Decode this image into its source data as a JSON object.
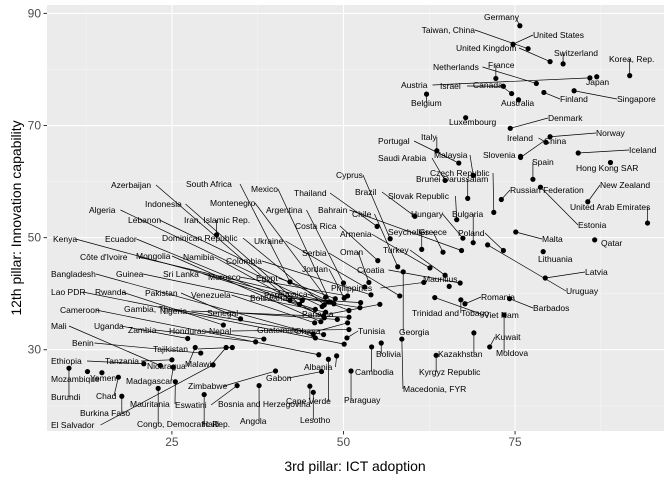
{
  "chart_data": {
    "type": "scatter",
    "xlabel": "3rd pillar: ICT adoption",
    "ylabel": "12th pillar: Innovation capability",
    "xlim": [
      6.8,
      96.7
    ],
    "ylim": [
      15.5,
      91.5
    ],
    "x_ticks": [
      25,
      50,
      75
    ],
    "y_ticks": [
      30,
      50,
      70,
      90
    ],
    "grid": true,
    "points": [
      {
        "label": "Germany",
        "x": 75.7,
        "y": 87.8
      },
      {
        "label": "United States",
        "x": 74.7,
        "y": 84.5
      },
      {
        "label": "Taiwan, China",
        "x": 76.9,
        "y": 83.7
      },
      {
        "label": "United Kingdom",
        "x": 80.1,
        "y": 81.4
      },
      {
        "label": "Switzerland",
        "x": 82.0,
        "y": 81.0
      },
      {
        "label": "Korea, Rep.",
        "x": 91.7,
        "y": 78.9
      },
      {
        "label": "Netherlands",
        "x": 78.1,
        "y": 77.5
      },
      {
        "label": "France",
        "x": 72.2,
        "y": 78.4
      },
      {
        "label": "Japan",
        "x": 86.9,
        "y": 78.7
      },
      {
        "label": "Austria",
        "x": 85.9,
        "y": 78.5
      },
      {
        "label": "Israel",
        "x": 73.3,
        "y": 77.0
      },
      {
        "label": "Canada",
        "x": 74.5,
        "y": 75.7
      },
      {
        "label": "Finland",
        "x": 79.2,
        "y": 75.9
      },
      {
        "label": "Singapore",
        "x": 83.6,
        "y": 76.2
      },
      {
        "label": "Belgium",
        "x": 62.1,
        "y": 75.6
      },
      {
        "label": "Australia",
        "x": 75.5,
        "y": 74.6
      },
      {
        "label": "Luxembourg",
        "x": 67.8,
        "y": 71.4
      },
      {
        "label": "Denmark",
        "x": 74.3,
        "y": 69.5
      },
      {
        "label": "Norway",
        "x": 80.1,
        "y": 68.0
      },
      {
        "label": "Ireland",
        "x": 79.5,
        "y": 67.0
      },
      {
        "label": "Italy",
        "x": 63.6,
        "y": 65.5
      },
      {
        "label": "China",
        "x": 75.8,
        "y": 64.3
      },
      {
        "label": "Iceland",
        "x": 84.2,
        "y": 65.1
      },
      {
        "label": "Portugal",
        "x": 66.8,
        "y": 63.3
      },
      {
        "label": "Slovenia",
        "x": 75.8,
        "y": 64.5
      },
      {
        "label": "Malaysia",
        "x": 68.9,
        "y": 61.1
      },
      {
        "label": "Saudi Arabia",
        "x": 64.8,
        "y": 60.2
      },
      {
        "label": "Spain",
        "x": 77.6,
        "y": 60.4
      },
      {
        "label": "Hong Kong SAR",
        "x": 88.9,
        "y": 63.4
      },
      {
        "label": "Czech Republic",
        "x": 71.9,
        "y": 54.5
      },
      {
        "label": "Brunei Darussalam",
        "x": 68.1,
        "y": 57.0
      },
      {
        "label": "New Zealand",
        "x": 85.6,
        "y": 56.4
      },
      {
        "label": "Cyprus",
        "x": 56.8,
        "y": 49.8
      },
      {
        "label": "Estonia",
        "x": 78.7,
        "y": 59.0
      },
      {
        "label": "Russian Federation",
        "x": 73.0,
        "y": 56.8
      },
      {
        "label": "Thailand",
        "x": 54.9,
        "y": 52.0
      },
      {
        "label": "Brazil",
        "x": 60.4,
        "y": 53.8
      },
      {
        "label": "Slovak Republic",
        "x": 66.5,
        "y": 53.2
      },
      {
        "label": "United Arab Emirates",
        "x": 94.3,
        "y": 52.6
      },
      {
        "label": "Azerbaijan",
        "x": 42.2,
        "y": 38.8
      },
      {
        "label": "South Africa",
        "x": 42.2,
        "y": 42.1
      },
      {
        "label": "Mexico",
        "x": 48.1,
        "y": 38.5
      },
      {
        "label": "Bahrain",
        "x": 67.2,
        "y": 47.7
      },
      {
        "label": "Hungary",
        "x": 67.4,
        "y": 49.9
      },
      {
        "label": "Bulgaria",
        "x": 68.9,
        "y": 49.1
      },
      {
        "label": "Indonesia",
        "x": 43.6,
        "y": 38.1
      },
      {
        "label": "Montenegro",
        "x": 47.4,
        "y": 39.4
      },
      {
        "label": "Argentina",
        "x": 50.0,
        "y": 41.9
      },
      {
        "label": "Chile",
        "x": 57.9,
        "y": 44.8
      },
      {
        "label": "Qatar",
        "x": 86.6,
        "y": 49.6
      },
      {
        "label": "Algeria",
        "x": 46.9,
        "y": 37.7
      },
      {
        "label": "Lebanon",
        "x": 48.6,
        "y": 38.2
      },
      {
        "label": "Iran, Islamic Rep.",
        "x": 31.5,
        "y": 50.5
      },
      {
        "label": "Costa Rica",
        "x": 55.0,
        "y": 45.9
      },
      {
        "label": "Seychelles",
        "x": 64.5,
        "y": 47.4
      },
      {
        "label": "Greece",
        "x": 61.4,
        "y": 47.9
      },
      {
        "label": "Poland",
        "x": 73.3,
        "y": 47.7
      },
      {
        "label": "Malta",
        "x": 75.1,
        "y": 51.0
      },
      {
        "label": "Kenya",
        "x": 44.0,
        "y": 38.8
      },
      {
        "label": "Ecuador",
        "x": 47.1,
        "y": 36.0
      },
      {
        "label": "Dominican Republic",
        "x": 47.2,
        "y": 38.0
      },
      {
        "label": "Tunisia",
        "x": 50.5,
        "y": 32.1
      },
      {
        "label": "Armenia",
        "x": 62.6,
        "y": 44.6
      },
      {
        "label": "Uruguay",
        "x": 71.0,
        "y": 48.7
      },
      {
        "label": "Serbia",
        "x": 58.2,
        "y": 39.6
      },
      {
        "label": "Oman",
        "x": 53.7,
        "y": 42.0
      },
      {
        "label": "Georgia",
        "x": 58.7,
        "y": 43.9
      },
      {
        "label": "Turkey",
        "x": 64.8,
        "y": 43.3
      },
      {
        "label": "Lithuania",
        "x": 79.1,
        "y": 47.5
      },
      {
        "label": "Côte d'Ivoire",
        "x": 47.8,
        "y": 38.5
      },
      {
        "label": "Mongolia",
        "x": 46.7,
        "y": 35.0
      },
      {
        "label": "Namibia",
        "x": 47.2,
        "y": 35.7
      },
      {
        "label": "Colombia",
        "x": 54.0,
        "y": 39.8
      },
      {
        "label": "Ukraine",
        "x": 53.1,
        "y": 41.2
      },
      {
        "label": "Croatia",
        "x": 67.0,
        "y": 41.9
      },
      {
        "label": "Jordan",
        "x": 50.1,
        "y": 39.2
      },
      {
        "label": "Latvia",
        "x": 79.4,
        "y": 42.8
      },
      {
        "label": "Bangladesh",
        "x": 45.6,
        "y": 32.8
      },
      {
        "label": "Guinea",
        "x": 47.4,
        "y": 36.7
      },
      {
        "label": "Sri Lanka",
        "x": 45.9,
        "y": 37.2
      },
      {
        "label": "Morocco",
        "x": 50.6,
        "y": 39.6
      },
      {
        "label": "Egypt",
        "x": 48.8,
        "y": 39.1
      },
      {
        "label": "Mauritius",
        "x": 65.4,
        "y": 41.3
      },
      {
        "label": "Peru",
        "x": 52.4,
        "y": 37.5
      },
      {
        "label": "Moldova",
        "x": 73.4,
        "y": 36.2
      },
      {
        "label": "Philippines",
        "x": 61.7,
        "y": 42.0
      },
      {
        "label": "Lao PDR",
        "x": 50.1,
        "y": 31.0
      },
      {
        "label": "Rwanda",
        "x": 32.5,
        "y": 34.4
      },
      {
        "label": "Pakistan",
        "x": 35.0,
        "y": 35.5
      },
      {
        "label": "Venezuela",
        "x": 45.8,
        "y": 34.8
      },
      {
        "label": "Botswana",
        "x": 52.5,
        "y": 38.4
      },
      {
        "label": "Jamaica",
        "x": 50.8,
        "y": 37.0
      },
      {
        "label": "Romania",
        "x": 67.7,
        "y": 38.2
      },
      {
        "label": "Barbados",
        "x": 74.2,
        "y": 39.1
      },
      {
        "label": "Cameroon",
        "x": 46.4,
        "y": 29.1
      },
      {
        "label": "Gambia, The",
        "x": 47.1,
        "y": 32.7
      },
      {
        "label": "Nigeria",
        "x": 50.8,
        "y": 35.8
      },
      {
        "label": "Senegal",
        "x": 49.1,
        "y": 35.4
      },
      {
        "label": "Panama",
        "x": 55.3,
        "y": 38.1
      },
      {
        "label": "Trinidad and Tobago",
        "x": 67.1,
        "y": 38.9
      },
      {
        "label": "Viet Nam",
        "x": 63.3,
        "y": 39.3
      },
      {
        "label": "Mali",
        "x": 23.3,
        "y": 27.2
      },
      {
        "label": "Uganda",
        "x": 27.3,
        "y": 32.0
      },
      {
        "label": "Zambia",
        "x": 37.2,
        "y": 31.4
      },
      {
        "label": "Honduras",
        "x": 38.4,
        "y": 31.9
      },
      {
        "label": "Nepal",
        "x": 50.8,
        "y": 33.6
      },
      {
        "label": "Guatemala",
        "x": 45.9,
        "y": 32.1
      },
      {
        "label": "Ghana",
        "x": 50.6,
        "y": 34.8
      },
      {
        "label": "Kuwait",
        "x": 71.3,
        "y": 30.5
      },
      {
        "label": "Benin",
        "x": 29.2,
        "y": 29.4
      },
      {
        "label": "Tajikistan",
        "x": 33.8,
        "y": 30.4
      },
      {
        "label": "Kazakhstan",
        "x": 69.0,
        "y": 33.0
      },
      {
        "label": "Ethiopia",
        "x": 20.9,
        "y": 27.5
      },
      {
        "label": "Tanzania",
        "x": 25.0,
        "y": 28.2
      },
      {
        "label": "Nicaragua",
        "x": 28.4,
        "y": 30.4
      },
      {
        "label": "Malawi",
        "x": 32.9,
        "y": 30.4
      },
      {
        "label": "Albania",
        "x": 49.0,
        "y": 28.9
      },
      {
        "label": "Bolivia",
        "x": 55.5,
        "y": 31.2
      },
      {
        "label": "Cambodia",
        "x": 54.1,
        "y": 30.5
      },
      {
        "label": "Kyrgyz Republic",
        "x": 63.5,
        "y": 29.0
      },
      {
        "label": "Mozambique",
        "x": 12.7,
        "y": 26.1
      },
      {
        "label": "Yemen",
        "x": 14.8,
        "y": 25.9
      },
      {
        "label": "Madagascar",
        "x": 25.2,
        "y": 26.9
      },
      {
        "label": "Gabon",
        "x": 46.8,
        "y": 26.1
      },
      {
        "label": "Burundi",
        "x": 10.0,
        "y": 26.7
      },
      {
        "label": "Chad",
        "x": 17.2,
        "y": 25.1
      },
      {
        "label": "Zimbabwe",
        "x": 40.1,
        "y": 26.2
      },
      {
        "label": "Cape Verde",
        "x": 47.8,
        "y": 28.3
      },
      {
        "label": "Macedonia, FYR",
        "x": 58.5,
        "y": 31.9
      },
      {
        "label": "Paraguay",
        "x": 51.1,
        "y": 26.2
      },
      {
        "label": "Mauritania",
        "x": 25.5,
        "y": 24.3
      },
      {
        "label": "Eswatini",
        "x": 34.5,
        "y": 23.6
      },
      {
        "label": "Bosnia and Herzegovina",
        "x": 45.1,
        "y": 23.5
      },
      {
        "label": "Burkina Faso",
        "x": 17.7,
        "y": 21.7
      },
      {
        "label": "Lesotho",
        "x": 45.6,
        "y": 22.4
      },
      {
        "label": "Haiti",
        "x": 29.7,
        "y": 22.0
      },
      {
        "label": "Angola",
        "x": 37.7,
        "y": 23.6
      },
      {
        "label": "El Salvador",
        "x": 31.0,
        "y": 27.3
      },
      {
        "label": "Congo, Democratic Rep.",
        "x": 23.0,
        "y": 23.1
      }
    ]
  }
}
